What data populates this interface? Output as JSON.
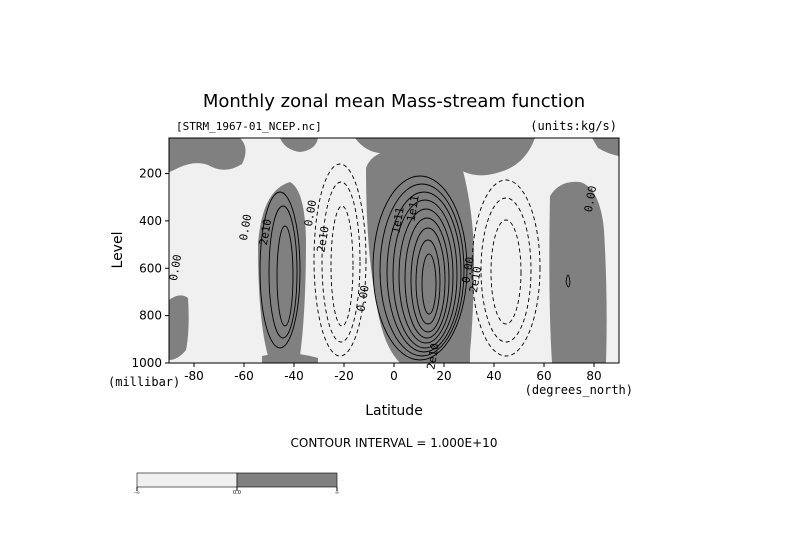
{
  "chart_data": {
    "type": "contour",
    "title": "Monthly zonal mean Mass-stream function",
    "file_label": "[STRM_1967-01_NCEP.nc]",
    "units_label": "(units:kg/s)",
    "xlabel": "Latitude",
    "ylabel": "Level",
    "x_unit": "(degrees_north)",
    "y_unit": "(millibar)",
    "xlim": [
      -90,
      90
    ],
    "ylim": [
      1000,
      50
    ],
    "x_ticks": [
      -80,
      -60,
      -40,
      -20,
      0,
      20,
      40,
      60,
      80
    ],
    "y_ticks": [
      200,
      400,
      600,
      800,
      1000
    ],
    "contour_interval_text": "CONTOUR INTERVAL = 1.000E+10",
    "contour_interval": 10000000000,
    "shading": {
      "negative": "#f0f0f0",
      "positive": "#808080"
    },
    "contour_labels": [
      {
        "text": "0.00",
        "lat": -86,
        "p": 600
      },
      {
        "text": "0.00",
        "lat": -58,
        "p": 430
      },
      {
        "text": "2e10",
        "lat": -50,
        "p": 450
      },
      {
        "text": "0.00",
        "lat": -32,
        "p": 370
      },
      {
        "text": "2e10",
        "lat": -27,
        "p": 480
      },
      {
        "text": "0.00",
        "lat": -11,
        "p": 730
      },
      {
        "text": "1e11",
        "lat": 3,
        "p": 400
      },
      {
        "text": "1e11",
        "lat": 9,
        "p": 350
      },
      {
        "text": "2e10",
        "lat": 17,
        "p": 975
      },
      {
        "text": "0.00",
        "lat": 31,
        "p": 610
      },
      {
        "text": "2e10",
        "lat": 34,
        "p": 650
      },
      {
        "text": "0.00",
        "lat": 80,
        "p": 310
      }
    ],
    "colorbar": {
      "labels": [
        "-∞",
        "0.0",
        "∞"
      ]
    }
  }
}
